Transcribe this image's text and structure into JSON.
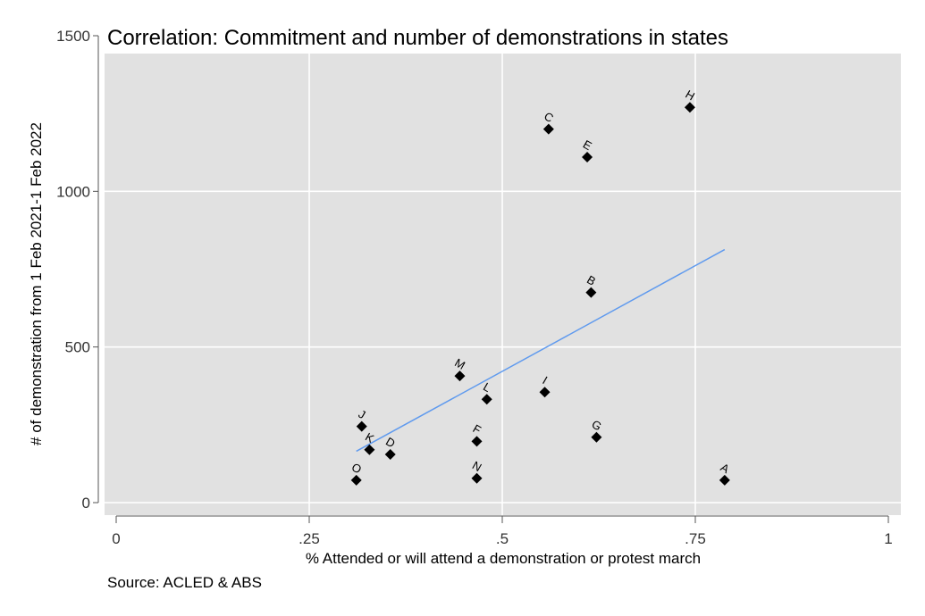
{
  "chart_data": {
    "type": "scatter",
    "title": "Correlation: Commitment and number of demonstrations in states",
    "xlabel": "% Attended or will attend a demonstration or protest march",
    "ylabel": "# of demonstration from 1 Feb 2021-1 Feb 2022",
    "note": "Source: ACLED & ABS",
    "xlim": [
      0,
      1
    ],
    "ylim": [
      0,
      1500
    ],
    "x_ticks": [
      0,
      0.25,
      0.5,
      0.75,
      1
    ],
    "x_tick_labels": [
      "0",
      ".25",
      ".5",
      ".75",
      "1"
    ],
    "y_ticks": [
      0,
      500,
      1000,
      1500
    ],
    "y_tick_labels": [
      "0",
      "500",
      "1000",
      "1500"
    ],
    "grid": true,
    "background": "#e1e1e1",
    "marker_color": "#000000",
    "fit_line_color": "#5f9aee",
    "points": [
      {
        "label": "A",
        "x": 0.788,
        "y": 72
      },
      {
        "label": "B",
        "x": 0.615,
        "y": 675
      },
      {
        "label": "C",
        "x": 0.56,
        "y": 1200
      },
      {
        "label": "D",
        "x": 0.355,
        "y": 155
      },
      {
        "label": "E",
        "x": 0.61,
        "y": 1110
      },
      {
        "label": "F",
        "x": 0.467,
        "y": 197
      },
      {
        "label": "G",
        "x": 0.622,
        "y": 210
      },
      {
        "label": "H",
        "x": 0.743,
        "y": 1270
      },
      {
        "label": "I",
        "x": 0.555,
        "y": 355
      },
      {
        "label": "J",
        "x": 0.318,
        "y": 245
      },
      {
        "label": "K",
        "x": 0.328,
        "y": 170
      },
      {
        "label": "L",
        "x": 0.48,
        "y": 332
      },
      {
        "label": "M",
        "x": 0.445,
        "y": 407
      },
      {
        "label": "N",
        "x": 0.467,
        "y": 78
      },
      {
        "label": "O",
        "x": 0.311,
        "y": 72
      }
    ],
    "fit_line": {
      "x": [
        0.311,
        0.788
      ],
      "y": [
        165,
        813
      ]
    }
  }
}
